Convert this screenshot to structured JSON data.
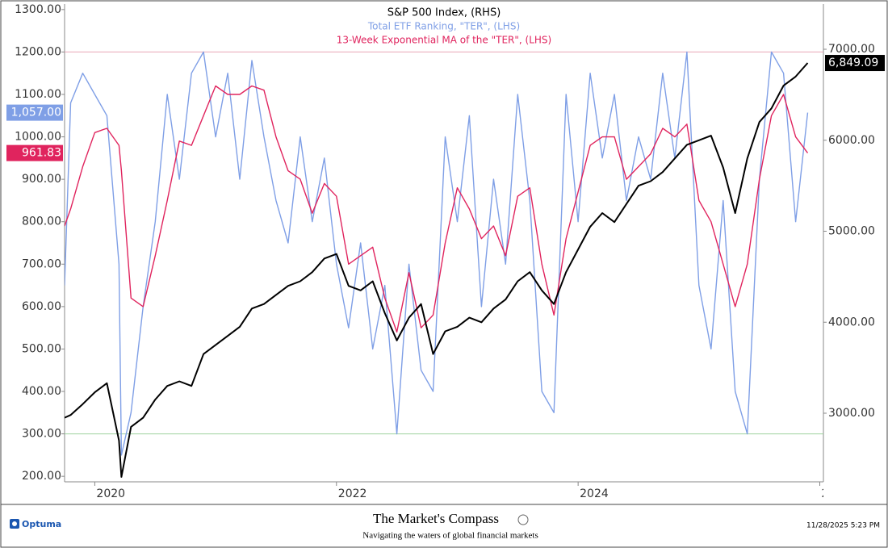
{
  "chart_data": {
    "type": "line",
    "series_titles_color_note": null,
    "x": [
      2019.75,
      2019.8,
      2019.9,
      2020.0,
      2020.1,
      2020.2,
      2020.22,
      2020.3,
      2020.4,
      2020.5,
      2020.6,
      2020.7,
      2020.8,
      2020.9,
      2021.0,
      2021.1,
      2021.2,
      2021.3,
      2021.4,
      2021.5,
      2021.6,
      2021.7,
      2021.8,
      2021.9,
      2022.0,
      2022.1,
      2022.2,
      2022.3,
      2022.4,
      2022.5,
      2022.6,
      2022.7,
      2022.8,
      2022.9,
      2023.0,
      2023.1,
      2023.2,
      2023.3,
      2023.4,
      2023.5,
      2023.6,
      2023.7,
      2023.8,
      2023.9,
      2024.0,
      2024.1,
      2024.2,
      2024.3,
      2024.4,
      2024.5,
      2024.6,
      2024.7,
      2024.8,
      2024.9,
      2025.0,
      2025.1,
      2025.2,
      2025.3,
      2025.4,
      2025.5,
      2025.6,
      2025.7,
      2025.8,
      2025.9
    ],
    "series": [
      {
        "name": "S&P 500 Index, (RHS)",
        "color": "#000000",
        "axis": "y2",
        "last_value_label": "6,849.09",
        "values": [
          2950,
          2980,
          3100,
          3230,
          3330,
          2700,
          2300,
          2850,
          2950,
          3150,
          3300,
          3350,
          3300,
          3650,
          3750,
          3850,
          3950,
          4150,
          4200,
          4300,
          4400,
          4450,
          4550,
          4700,
          4750,
          4400,
          4350,
          4450,
          4100,
          3800,
          4050,
          4200,
          3650,
          3900,
          3950,
          4050,
          4000,
          4150,
          4250,
          4450,
          4550,
          4350,
          4200,
          4550,
          4800,
          5050,
          5200,
          5100,
          5300,
          5500,
          5550,
          5650,
          5800,
          5950,
          6000,
          6050,
          5700,
          5200,
          5800,
          6200,
          6350,
          6600,
          6700,
          6849.09
        ]
      },
      {
        "name": "Total ETF Ranking, \"TER\", (LHS)",
        "color": "#7f9fe6",
        "axis": "y",
        "last_value_label": "1,057.00",
        "values": [
          650,
          1080,
          1150,
          1100,
          1050,
          700,
          250,
          350,
          600,
          800,
          1100,
          900,
          1150,
          1200,
          1000,
          1150,
          900,
          1180,
          1000,
          850,
          750,
          1000,
          800,
          950,
          700,
          550,
          750,
          500,
          650,
          300,
          700,
          450,
          400,
          1000,
          800,
          1050,
          600,
          900,
          700,
          1100,
          850,
          400,
          350,
          1100,
          800,
          1150,
          950,
          1100,
          850,
          1000,
          900,
          1150,
          950,
          1200,
          650,
          500,
          850,
          400,
          300,
          900,
          1200,
          1150,
          800,
          1057
        ]
      },
      {
        "name": "13-Week Exponential MA of the \"TER\", (LHS)",
        "color": "#e0245e",
        "axis": "y",
        "last_value_label": "961.83",
        "values": [
          790,
          830,
          930,
          1010,
          1020,
          980,
          920,
          620,
          600,
          720,
          850,
          990,
          980,
          1050,
          1120,
          1100,
          1100,
          1120,
          1110,
          1000,
          920,
          900,
          820,
          890,
          860,
          700,
          720,
          740,
          620,
          540,
          680,
          550,
          580,
          750,
          880,
          830,
          760,
          790,
          720,
          860,
          880,
          700,
          580,
          760,
          870,
          980,
          1000,
          1000,
          900,
          930,
          960,
          1020,
          1000,
          1030,
          850,
          800,
          700,
          600,
          700,
          900,
          1050,
          1100,
          1000,
          961.83
        ]
      }
    ],
    "xlim": [
      2019.75,
      2026.03
    ],
    "xticks": [
      2020,
      2022,
      2024,
      {
        "value": 2026,
        "label": "2"
      }
    ],
    "ylim": [
      187,
      1313
    ],
    "yticks": [
      {
        "value": 200,
        "label": "200.00"
      },
      {
        "value": 300,
        "label": "300.00"
      },
      {
        "value": 400,
        "label": "400.00"
      },
      {
        "value": 500,
        "label": "500.00"
      },
      {
        "value": 600,
        "label": "600.00"
      },
      {
        "value": 700,
        "label": "700.00"
      },
      {
        "value": 800,
        "label": "800.00"
      },
      {
        "value": 900,
        "label": "900.00"
      },
      {
        "value": 1000,
        "label": "1000.00"
      },
      {
        "value": 1100,
        "label": "1100.00"
      },
      {
        "value": 1200,
        "label": "1200.00"
      },
      {
        "value": 1300,
        "label": "1300.00"
      }
    ],
    "y2lim": [
      2246,
      7497
    ],
    "y2ticks": [
      {
        "value": 3000,
        "label": "3000.00"
      },
      {
        "value": 4000,
        "label": "4000.00"
      },
      {
        "value": 5000,
        "label": "5000.00"
      },
      {
        "value": 6000,
        "label": "6000.00"
      },
      {
        "value": 7000,
        "label": "7000.00"
      }
    ],
    "hlines": [
      {
        "value": 1200,
        "color": "#e8a6b6"
      },
      {
        "value": 300,
        "color": "#9ed39e"
      }
    ]
  },
  "footer": {
    "brand": "Optuma",
    "title": "The Market's Compass",
    "subtitle": "Navigating the waters of global financial markets",
    "timestamp": "11/28/2025 5:23 PM"
  }
}
